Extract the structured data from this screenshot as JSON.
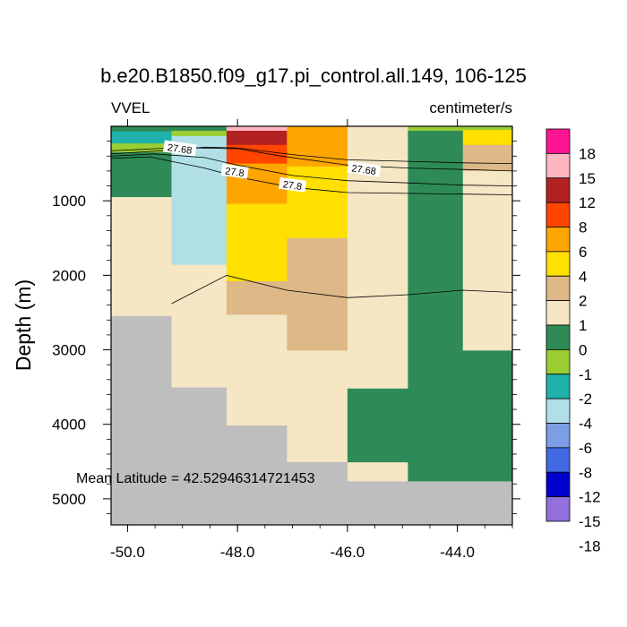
{
  "chart_data": {
    "type": "heatmap",
    "title": "b.e20.B1850.f09_g17.pi_control.all.149, 106-125",
    "left_label": "VVEL",
    "right_label": "centimeter/s",
    "ylabel": "Depth (m)",
    "xlabel": "",
    "xlim": [
      -50.3,
      -43.0
    ],
    "ylim": [
      5350,
      0
    ],
    "x_ticks": [
      -50.0,
      -48.0,
      -46.0,
      -44.0
    ],
    "x_tick_labels": [
      "-50.0",
      "-48.0",
      "-46.0",
      "-44.0"
    ],
    "y_ticks": [
      1000,
      2000,
      3000,
      4000,
      5000
    ],
    "y_tick_labels": [
      "1000",
      "2000",
      "3000",
      "4000",
      "5000"
    ],
    "annotation": "Mean Latitude = 42.52946314721453",
    "colorbar": {
      "labels": [
        "18",
        "15",
        "12",
        "8",
        "6",
        "4",
        "2",
        "1",
        "0",
        "-1",
        "-2",
        "-4",
        "-6",
        "-8",
        "-12",
        "-15",
        "-18"
      ],
      "colors": [
        "#ff1493",
        "#ffb6c1",
        "#b22222",
        "#ff4500",
        "#ffa500",
        "#ffe000",
        "#deb887",
        "#f5e6c4",
        "#2e8b57",
        "#9acd32",
        "#20b2aa",
        "#b0e0e6",
        "#7b9ee6",
        "#4169e1",
        "#0000cd",
        "#9370db"
      ]
    },
    "land_color": "#bebebe",
    "cells": [
      {
        "x0": -50.3,
        "x1": -49.2,
        "y0": 0,
        "y1": 70,
        "v": "-1"
      },
      {
        "x0": -50.3,
        "x1": -49.2,
        "y0": 70,
        "y1": 230,
        "v": "-4"
      },
      {
        "x0": -50.3,
        "x1": -49.2,
        "y0": 230,
        "y1": 350,
        "v": "-2"
      },
      {
        "x0": -50.3,
        "x1": -49.2,
        "y0": 350,
        "y1": 950,
        "v": "-1"
      },
      {
        "x0": -50.3,
        "x1": -49.2,
        "y0": 950,
        "y1": 2540,
        "v": "0"
      },
      {
        "x0": -49.2,
        "x1": -48.2,
        "y0": 0,
        "y1": 60,
        "v": "-1"
      },
      {
        "x0": -49.2,
        "x1": -48.2,
        "y0": 60,
        "y1": 130,
        "v": "-2"
      },
      {
        "x0": -49.2,
        "x1": -48.2,
        "y0": 130,
        "y1": 1860,
        "v": "-6"
      },
      {
        "x0": -49.2,
        "x1": -48.2,
        "y0": 1860,
        "y1": 3500,
        "v": "0"
      },
      {
        "x0": -48.2,
        "x1": -47.1,
        "y0": 0,
        "y1": 60,
        "v": "15"
      },
      {
        "x0": -48.2,
        "x1": -47.1,
        "y0": 60,
        "y1": 250,
        "v": "12"
      },
      {
        "x0": -48.2,
        "x1": -47.1,
        "y0": 250,
        "y1": 500,
        "v": "8"
      },
      {
        "x0": -48.2,
        "x1": -47.1,
        "y0": 500,
        "y1": 1040,
        "v": "6"
      },
      {
        "x0": -48.2,
        "x1": -47.1,
        "y0": 1040,
        "y1": 2080,
        "v": "4"
      },
      {
        "x0": -48.2,
        "x1": -47.1,
        "y0": 2080,
        "y1": 2530,
        "v": "2"
      },
      {
        "x0": -48.2,
        "x1": -47.1,
        "y0": 2530,
        "y1": 4010,
        "v": "0"
      },
      {
        "x0": -47.1,
        "x1": -46.0,
        "y0": 0,
        "y1": 540,
        "v": "6"
      },
      {
        "x0": -47.1,
        "x1": -46.0,
        "y0": 540,
        "y1": 1500,
        "v": "4"
      },
      {
        "x0": -47.1,
        "x1": -46.0,
        "y0": 1500,
        "y1": 3010,
        "v": "2"
      },
      {
        "x0": -47.1,
        "x1": -46.0,
        "y0": 3010,
        "y1": 4500,
        "v": "0"
      },
      {
        "x0": -46.0,
        "x1": -44.9,
        "y0": 0,
        "y1": 3520,
        "v": "0"
      },
      {
        "x0": -46.0,
        "x1": -44.9,
        "y0": 3520,
        "y1": 4510,
        "v": "-1"
      },
      {
        "x0": -46.0,
        "x1": -44.9,
        "y0": 4510,
        "y1": 4760,
        "v": "0"
      },
      {
        "x0": -44.9,
        "x1": -43.9,
        "y0": 0,
        "y1": 60,
        "v": "-2"
      },
      {
        "x0": -44.9,
        "x1": -43.9,
        "y0": 60,
        "y1": 4760,
        "v": "-1"
      },
      {
        "x0": -43.9,
        "x1": -43.0,
        "y0": 0,
        "y1": 50,
        "v": "-2"
      },
      {
        "x0": -43.9,
        "x1": -43.0,
        "y0": 50,
        "y1": 250,
        "v": "4"
      },
      {
        "x0": -43.9,
        "x1": -43.0,
        "y0": 250,
        "y1": 600,
        "v": "2"
      },
      {
        "x0": -43.9,
        "x1": -43.0,
        "y0": 600,
        "y1": 3010,
        "v": "0"
      },
      {
        "x0": -43.9,
        "x1": -43.0,
        "y0": 3010,
        "y1": 4760,
        "v": "-1"
      }
    ],
    "contours": [
      {
        "points": [
          [
            -50.3,
            370
          ],
          [
            -49.2,
            320
          ],
          [
            -48.6,
            280
          ],
          [
            -48.0,
            290
          ],
          [
            -47.0,
            380
          ],
          [
            -46.0,
            450
          ],
          [
            -44.9,
            470
          ],
          [
            -43.9,
            490
          ],
          [
            -43.0,
            500
          ]
        ],
        "label": "27.68",
        "label_at": [
          -49.05,
          300
        ],
        "label2": "27.68",
        "label2_at": [
          -45.7,
          580
        ]
      },
      {
        "points": [
          [
            -50.3,
            400
          ],
          [
            -49.5,
            370
          ],
          [
            -48.6,
            420
          ],
          [
            -48.0,
            520
          ],
          [
            -47.0,
            660
          ],
          [
            -46.0,
            730
          ],
          [
            -44.9,
            760
          ],
          [
            -43.9,
            790
          ],
          [
            -43.0,
            800
          ]
        ],
        "label": "27.8",
        "label_at": [
          -48.05,
          610
        ],
        "label2": "27.8",
        "label2_at": [
          -47.0,
          790
        ]
      },
      {
        "points": [
          [
            -50.3,
            430
          ],
          [
            -49.6,
            410
          ],
          [
            -48.6,
            560
          ],
          [
            -48.0,
            680
          ],
          [
            -47.0,
            820
          ],
          [
            -46.0,
            890
          ],
          [
            -44.9,
            900
          ],
          [
            -43.9,
            910
          ],
          [
            -43.0,
            920
          ]
        ],
        "label": "",
        "label_at": null,
        "label2": "",
        "label2_at": null
      },
      {
        "points": [
          [
            -50.3,
            330
          ],
          [
            -49.5,
            300
          ],
          [
            -48.8,
            290
          ],
          [
            -48.0,
            300
          ],
          [
            -47.2,
            400
          ],
          [
            -46.0,
            520
          ],
          [
            -44.9,
            560
          ],
          [
            -43.9,
            580
          ],
          [
            -43.0,
            600
          ]
        ],
        "label": "",
        "label_at": null,
        "label2": "",
        "label2_at": null
      },
      {
        "points": [
          [
            -49.2,
            2380
          ],
          [
            -48.2,
            2000
          ],
          [
            -47.1,
            2200
          ],
          [
            -46.0,
            2300
          ],
          [
            -44.9,
            2260
          ],
          [
            -43.9,
            2200
          ],
          [
            -43.0,
            2230
          ]
        ],
        "label": "",
        "label_at": null,
        "label2": "",
        "label2_at": null
      }
    ]
  }
}
